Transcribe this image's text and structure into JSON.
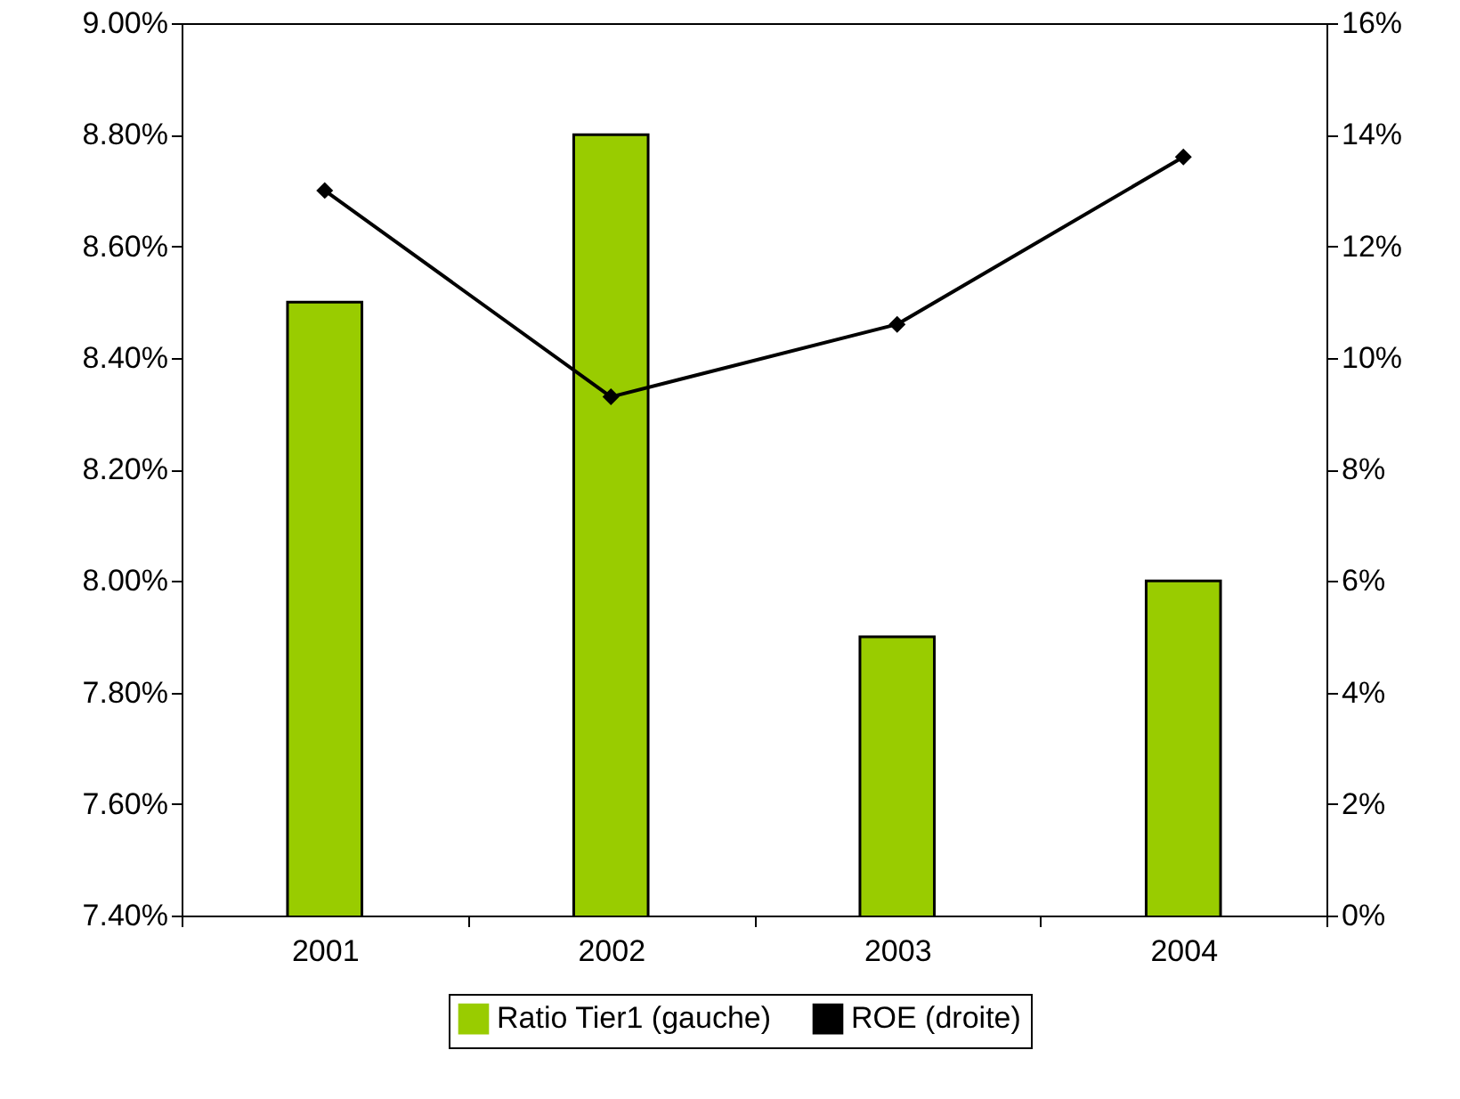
{
  "chart_data": {
    "type": "bar",
    "categories": [
      "2001",
      "2002",
      "2003",
      "2004"
    ],
    "series": [
      {
        "name": "Ratio Tier1 (gauche)",
        "color": "#99cc00",
        "values": [
          8.5,
          8.8,
          7.9,
          8.0
        ]
      },
      {
        "name": "ROE (droite)",
        "type": "line",
        "axis": "y2",
        "color": "#000000",
        "values": [
          13.0,
          9.3,
          10.6,
          13.6
        ]
      }
    ],
    "ylim": [
      7.4,
      9.0
    ],
    "yticks": [
      {
        "value": 7.4,
        "label": "7.40%"
      },
      {
        "value": 7.6,
        "label": "7.60%"
      },
      {
        "value": 7.8,
        "label": "7.80%"
      },
      {
        "value": 8.0,
        "label": "8.00%"
      },
      {
        "value": 8.2,
        "label": "8.20%"
      },
      {
        "value": 8.4,
        "label": "8.40%"
      },
      {
        "value": 8.6,
        "label": "8.60%"
      },
      {
        "value": 8.8,
        "label": "8.80%"
      },
      {
        "value": 9.0,
        "label": "9.00%"
      }
    ],
    "y2lim": [
      0,
      16
    ],
    "y2ticks": [
      {
        "value": 0,
        "label": "0%"
      },
      {
        "value": 2,
        "label": "2%"
      },
      {
        "value": 4,
        "label": "4%"
      },
      {
        "value": 6,
        "label": "6%"
      },
      {
        "value": 8,
        "label": "8%"
      },
      {
        "value": 10,
        "label": "10%"
      },
      {
        "value": 12,
        "label": "12%"
      },
      {
        "value": 14,
        "label": "14%"
      },
      {
        "value": 16,
        "label": "16%"
      }
    ],
    "legend": "bottom",
    "marker": "diamond"
  }
}
